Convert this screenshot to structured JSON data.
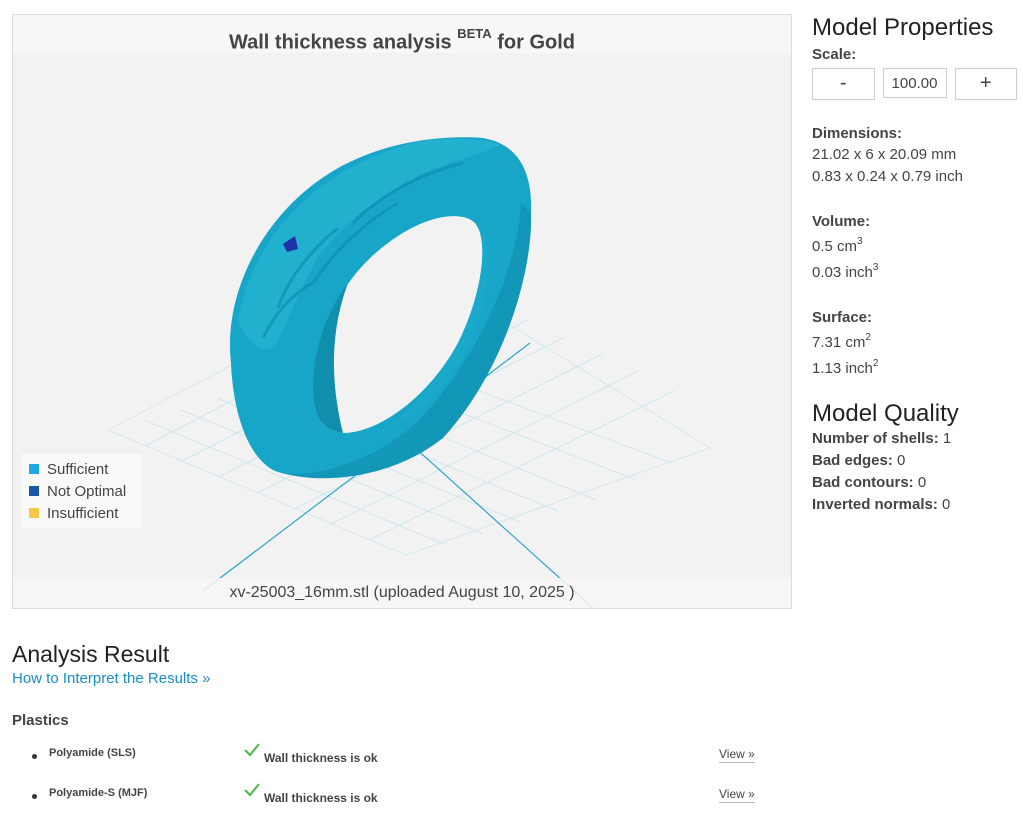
{
  "viewer": {
    "title_main": "Wall thickness analysis",
    "title_sup": "BETA",
    "title_rest": "for Gold",
    "footer": "xv-25003_16mm.stl (uploaded August 10, 2025 )",
    "legend": [
      {
        "label": "Sufficient",
        "color": "#1ea8e6"
      },
      {
        "label": "Not Optimal",
        "color": "#1c57a8"
      },
      {
        "label": "Insufficient",
        "color": "#f5c945"
      }
    ],
    "model_color": "#1ba8c9"
  },
  "properties": {
    "heading": "Model Properties",
    "scale_label": "Scale:",
    "scale_minus": "-",
    "scale_value": "100.00",
    "scale_plus": "+",
    "dimensions_label": "Dimensions:",
    "dimensions_mm": "21.02 x 6 x 20.09 mm",
    "dimensions_inch": "0.83 x 0.24 x 0.79 inch",
    "volume_label": "Volume:",
    "volume_cm": "0.5 cm",
    "volume_inch": "0.03 inch",
    "volume_exp": "3",
    "surface_label": "Surface:",
    "surface_cm": "7.31 cm",
    "surface_inch": "1.13 inch",
    "surface_exp": "2"
  },
  "quality": {
    "heading": "Model Quality",
    "rows": [
      {
        "label": "Number of shells:",
        "value": "1"
      },
      {
        "label": "Bad edges:",
        "value": "0"
      },
      {
        "label": "Bad contours:",
        "value": "0"
      },
      {
        "label": "Inverted normals:",
        "value": "0"
      }
    ]
  },
  "analysis": {
    "heading": "Analysis Result",
    "interpret_link": "How to Interpret the Results »",
    "section": "Plastics",
    "results": [
      {
        "material": "Polyamide (SLS)",
        "status": "Wall thickness is ok",
        "view": "View »"
      },
      {
        "material": "Polyamide-S (MJF)",
        "status": "Wall thickness is ok",
        "view": "View »"
      }
    ]
  }
}
